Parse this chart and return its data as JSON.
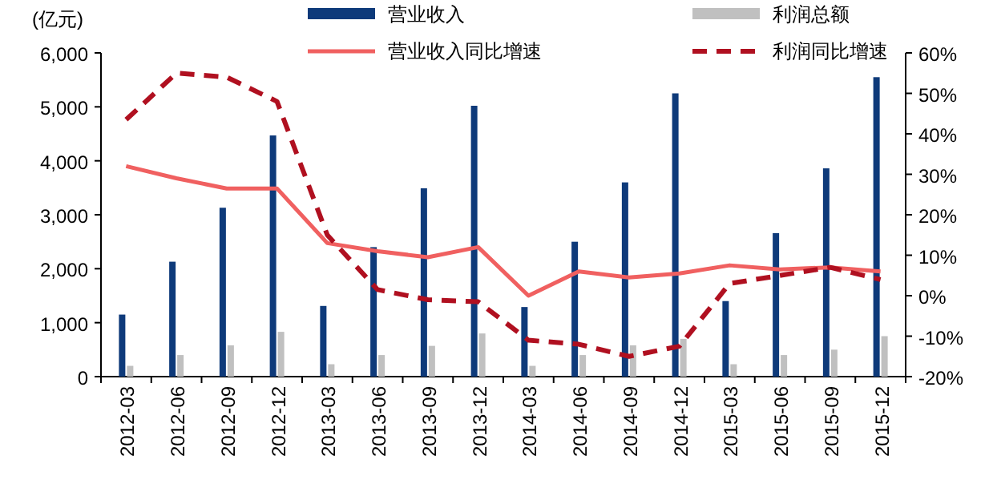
{
  "chart_data": {
    "type": "bar",
    "ylabel": "(亿元)",
    "legend": "top",
    "grid": false,
    "categories": [
      "2012-03",
      "2012-06",
      "2012-09",
      "2012-12",
      "2013-03",
      "2013-06",
      "2013-09",
      "2013-12",
      "2014-03",
      "2014-06",
      "2014-09",
      "2014-12",
      "2015-03",
      "2015-06",
      "2015-09",
      "2015-12"
    ],
    "series": [
      {
        "name": "营业收入",
        "color": "#0e3a7a",
        "values": [
          1150,
          2130,
          3130,
          4470,
          1310,
          2400,
          3490,
          5020,
          1290,
          2500,
          3600,
          5250,
          1400,
          2660,
          3860,
          5550
        ]
      },
      {
        "name": "利润总额",
        "color": "#c0c0c0",
        "values": [
          200,
          400,
          580,
          830,
          230,
          400,
          570,
          800,
          200,
          400,
          580,
          700,
          230,
          400,
          500,
          750
        ]
      },
      {
        "name": "营业收入同比增速",
        "type": "line",
        "axis": "y2",
        "line_style": "solid",
        "color": "#f06060",
        "values": [
          32,
          29,
          26.5,
          26.5,
          13,
          11,
          9.5,
          12,
          0,
          6,
          4.5,
          5.5,
          7.5,
          6.5,
          7,
          6
        ]
      },
      {
        "name": "利润同比增速",
        "type": "line",
        "axis": "y2",
        "line_style": "dashed",
        "color": "#b01020",
        "values": [
          43.5,
          55,
          54,
          48,
          15,
          1.5,
          -1,
          -1.5,
          -11,
          -12,
          -15,
          -12.5,
          3,
          5,
          7,
          4
        ]
      }
    ],
    "ylim": [
      0,
      6000
    ],
    "yticks": [
      0,
      {
        "value": 1000,
        "label": "1,000"
      },
      {
        "value": 2000,
        "label": "2,000"
      },
      {
        "value": 3000,
        "label": "3,000"
      },
      {
        "value": 4000,
        "label": "4,000"
      },
      {
        "value": 5000,
        "label": "5,000"
      },
      {
        "value": 6000,
        "label": "6,000"
      }
    ],
    "y2lim": [
      -20,
      60
    ],
    "y2ticks": [
      {
        "value": -20,
        "label": "-20%"
      },
      {
        "value": -10,
        "label": "-10%"
      },
      {
        "value": 0,
        "label": "0%"
      },
      {
        "value": 10,
        "label": "10%"
      },
      {
        "value": 20,
        "label": "20%"
      },
      {
        "value": 30,
        "label": "30%"
      },
      {
        "value": 40,
        "label": "40%"
      },
      {
        "value": 50,
        "label": "50%"
      },
      {
        "value": 60,
        "label": "60%"
      }
    ]
  }
}
